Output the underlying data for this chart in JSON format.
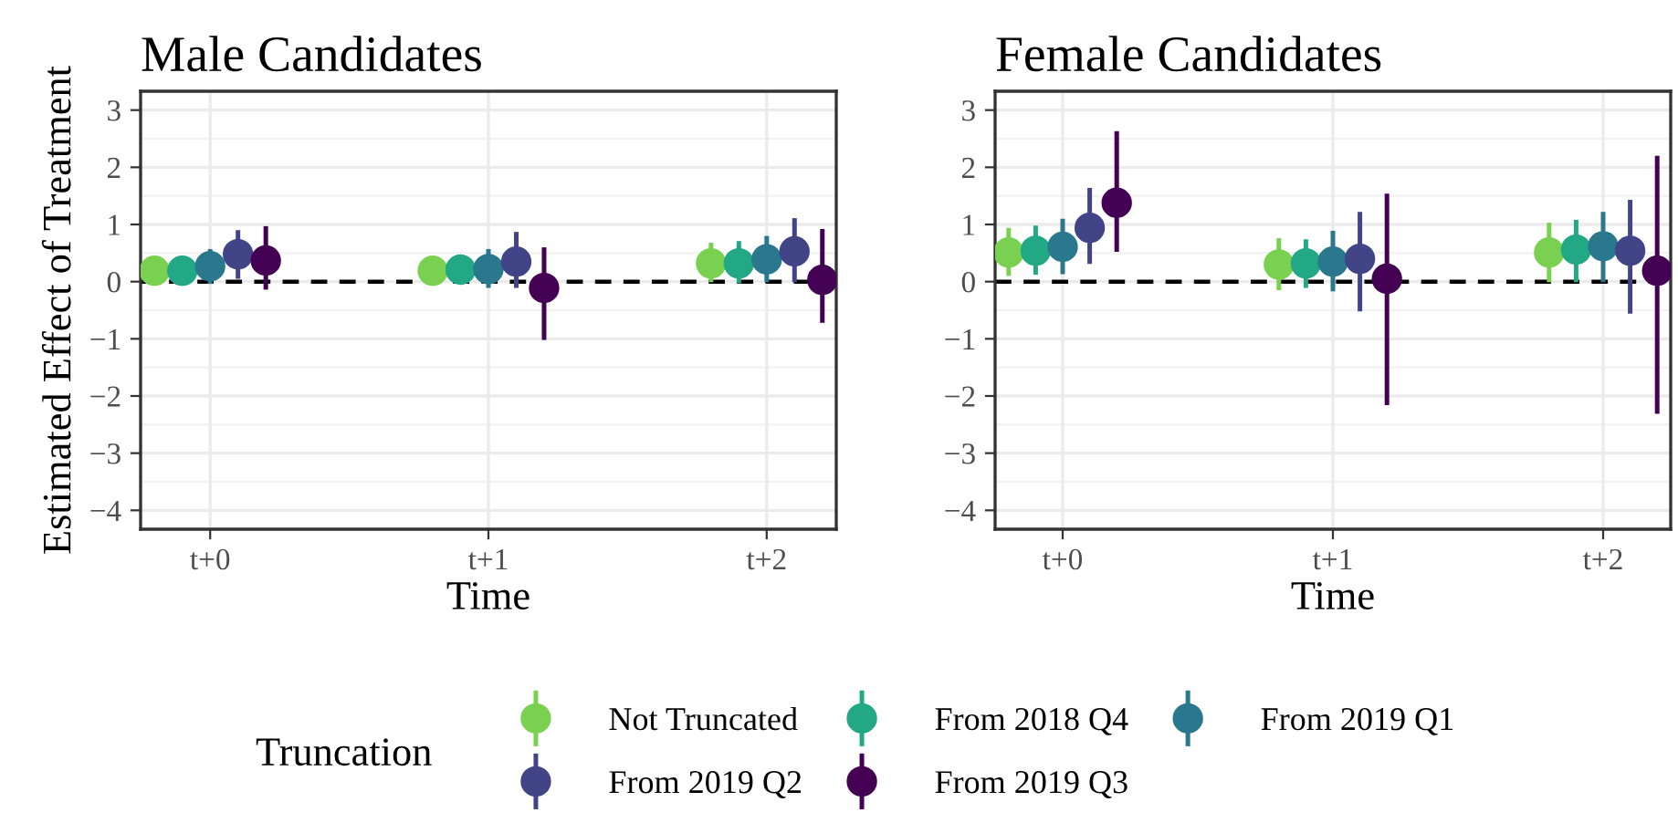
{
  "chart_data": [
    {
      "type": "scatter",
      "title": "Male Candidates",
      "xlabel": "Time",
      "ylabel": "Estimated Effect of Treatment",
      "categories": [
        "t+0",
        "t+1",
        "t+2"
      ],
      "ylim": [
        -4.33,
        3.33
      ],
      "yticks": [
        {
          "value": -4,
          "label": "−4"
        },
        {
          "value": -3,
          "label": "−3"
        },
        {
          "value": -2,
          "label": "−2"
        },
        {
          "value": -1,
          "label": "−1"
        },
        0,
        1,
        2,
        3
      ],
      "grid": true,
      "marker": "circle",
      "legend": "bottom",
      "legend_title": "Truncation",
      "ref_lines": [
        {
          "axis": "y",
          "value": 0,
          "color": "#000000",
          "line_style": "dashed"
        }
      ],
      "series": [
        {
          "name": "Not Truncated",
          "color": "#7ad151",
          "values": [
            0.19,
            0.19,
            0.32
          ],
          "errors": [
            null,
            null,
            [
              0.03,
              0.64
            ]
          ]
        },
        {
          "name": "From 2018 Q4",
          "color": "#22a884",
          "values": [
            0.19,
            0.21,
            0.32
          ],
          "errors": [
            null,
            null,
            [
              0.01,
              0.67
            ]
          ]
        },
        {
          "name": "From 2019 Q1",
          "color": "#2a788e",
          "values": [
            0.27,
            0.22,
            0.39
          ],
          "errors": [
            [
              0.0,
              0.53
            ],
            [
              -0.07,
              0.53
            ],
            [
              0.03,
              0.76
            ]
          ]
        },
        {
          "name": "From 2019 Q2",
          "color": "#414487",
          "values": [
            0.48,
            0.35,
            0.53
          ],
          "errors": [
            [
              0.09,
              0.86
            ],
            [
              -0.07,
              0.83
            ],
            [
              0.03,
              1.07
            ]
          ]
        },
        {
          "name": "From 2019 Q3",
          "color": "#440154",
          "values": [
            0.37,
            -0.11,
            0.03
          ],
          "errors": [
            [
              -0.1,
              0.93
            ],
            [
              -0.98,
              0.56
            ],
            [
              -0.68,
              0.88
            ]
          ]
        }
      ]
    },
    {
      "type": "scatter",
      "title": "Female Candidates",
      "xlabel": "Time",
      "categories": [
        "t+0",
        "t+1",
        "t+2"
      ],
      "ylim": [
        -4.33,
        3.33
      ],
      "yticks": [
        {
          "value": -4,
          "label": "−4"
        },
        {
          "value": -3,
          "label": "−3"
        },
        {
          "value": -2,
          "label": "−2"
        },
        {
          "value": -1,
          "label": "−1"
        },
        0,
        1,
        2,
        3
      ],
      "grid": true,
      "marker": "circle",
      "ref_lines": [
        {
          "axis": "y",
          "value": 0,
          "color": "#000000",
          "line_style": "dashed"
        }
      ],
      "series": [
        {
          "color": "#7ad151",
          "values": [
            0.51,
            0.3,
            0.51
          ],
          "errors": [
            [
              0.14,
              0.9
            ],
            [
              -0.11,
              0.72
            ],
            [
              0.03,
              0.99
            ]
          ]
        },
        {
          "color": "#22a884",
          "values": [
            0.54,
            0.32,
            0.56
          ],
          "errors": [
            [
              0.16,
              0.94
            ],
            [
              -0.07,
              0.7
            ],
            [
              0.03,
              1.04
            ]
          ]
        },
        {
          "color": "#2a788e",
          "values": [
            0.61,
            0.35,
            0.62
          ],
          "errors": [
            [
              0.17,
              1.06
            ],
            [
              -0.13,
              0.85
            ],
            [
              0.03,
              1.18
            ]
          ]
        },
        {
          "color": "#414487",
          "values": [
            0.94,
            0.4,
            0.54
          ],
          "errors": [
            [
              0.35,
              1.6
            ],
            [
              -0.48,
              1.18
            ],
            [
              -0.52,
              1.39
            ]
          ]
        },
        {
          "color": "#440154",
          "values": [
            1.38,
            0.05,
            0.19
          ],
          "errors": [
            [
              0.56,
              2.59
            ],
            [
              -2.12,
              1.5
            ],
            [
              -2.27,
              2.16
            ]
          ]
        }
      ]
    }
  ]
}
